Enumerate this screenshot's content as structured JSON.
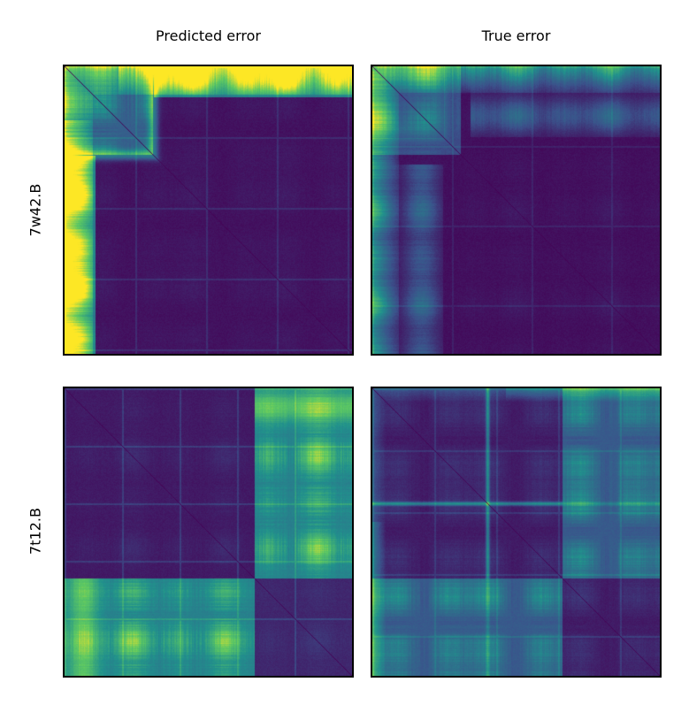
{
  "chart_data": {
    "type": "heatmap",
    "colormap": "viridis",
    "colormap_stops": [
      "#440154",
      "#3b528b",
      "#21918c",
      "#5ec962",
      "#fde725"
    ],
    "column_titles": [
      "Predicted error",
      "True error"
    ],
    "row_labels": [
      "7w42.B",
      "7t12.B"
    ],
    "grid": false,
    "axes_ticks": false,
    "panels": [
      {
        "row": "7w42.B",
        "column": "Predicted error"
      },
      {
        "row": "7w42.B",
        "column": "True error"
      },
      {
        "row": "7t12.B",
        "column": "Predicted error"
      },
      {
        "row": "7t12.B",
        "column": "True error"
      }
    ]
  }
}
